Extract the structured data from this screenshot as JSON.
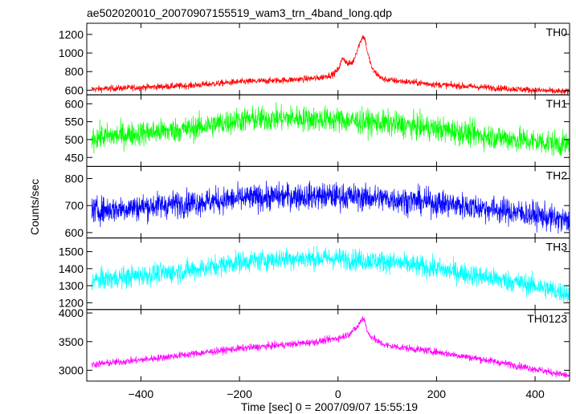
{
  "chart_data": {
    "type": "line",
    "title": "ae502020010_20070907155519_wam3_trn_4band_long.qdp",
    "xlabel": "Time [sec] 0 = 2007/09/07 15:55:19",
    "ylabel": "Counts/sec",
    "xlim": [
      -510,
      470
    ],
    "xticks": [
      -400,
      -200,
      0,
      200,
      400
    ],
    "xtick_labels": [
      "−400",
      "−200",
      "0",
      "200",
      "400"
    ],
    "grid": false,
    "legend": "none",
    "series": [
      {
        "name": "TH0",
        "color": "#ff0000",
        "ylim": [
          550,
          1320
        ],
        "yticks": [
          600,
          800,
          1000,
          1200
        ],
        "noise": 25,
        "x": [
          -500,
          -400,
          -300,
          -200,
          -100,
          -40,
          -10,
          0,
          10,
          20,
          30,
          40,
          50,
          55,
          60,
          70,
          90,
          120,
          200,
          300,
          400,
          470
        ],
        "y": [
          610,
          630,
          650,
          690,
          710,
          730,
          770,
          820,
          950,
          880,
          900,
          1050,
          1180,
          1150,
          1000,
          820,
          720,
          700,
          660,
          630,
          600,
          580
        ]
      },
      {
        "name": "TH1",
        "color": "#00ff00",
        "ylim": [
          425,
          625
        ],
        "yticks": [
          450,
          500,
          550,
          600
        ],
        "noise": 25,
        "x": [
          -500,
          -300,
          -200,
          -100,
          0,
          100,
          200,
          300,
          400,
          470
        ],
        "y": [
          505,
          530,
          555,
          560,
          555,
          545,
          530,
          510,
          495,
          485
        ]
      },
      {
        "name": "TH2",
        "color": "#0000ff",
        "ylim": [
          580,
          845
        ],
        "yticks": [
          600,
          700,
          800
        ],
        "noise": 35,
        "x": [
          -500,
          -300,
          -200,
          -100,
          0,
          100,
          200,
          300,
          400,
          470
        ],
        "y": [
          680,
          710,
          725,
          735,
          735,
          725,
          710,
          690,
          665,
          640
        ]
      },
      {
        "name": "TH3",
        "color": "#00ffff",
        "ylim": [
          1160,
          1580
        ],
        "yticks": [
          1200,
          1300,
          1400,
          1500
        ],
        "noise": 45,
        "x": [
          -500,
          -300,
          -200,
          -100,
          0,
          100,
          200,
          300,
          400,
          470
        ],
        "y": [
          1330,
          1390,
          1440,
          1460,
          1460,
          1440,
          1400,
          1350,
          1300,
          1250
        ]
      },
      {
        "name": "TH0123",
        "color": "#ff00ff",
        "ylim": [
          2810,
          4060
        ],
        "yticks": [
          3000,
          3500,
          4000
        ],
        "noise": 45,
        "x": [
          -500,
          -400,
          -300,
          -200,
          -100,
          -40,
          0,
          20,
          40,
          50,
          55,
          60,
          80,
          100,
          200,
          300,
          400,
          470
        ],
        "y": [
          3100,
          3180,
          3280,
          3380,
          3450,
          3500,
          3560,
          3620,
          3760,
          3920,
          3860,
          3650,
          3500,
          3430,
          3320,
          3180,
          3020,
          2900
        ]
      }
    ]
  }
}
